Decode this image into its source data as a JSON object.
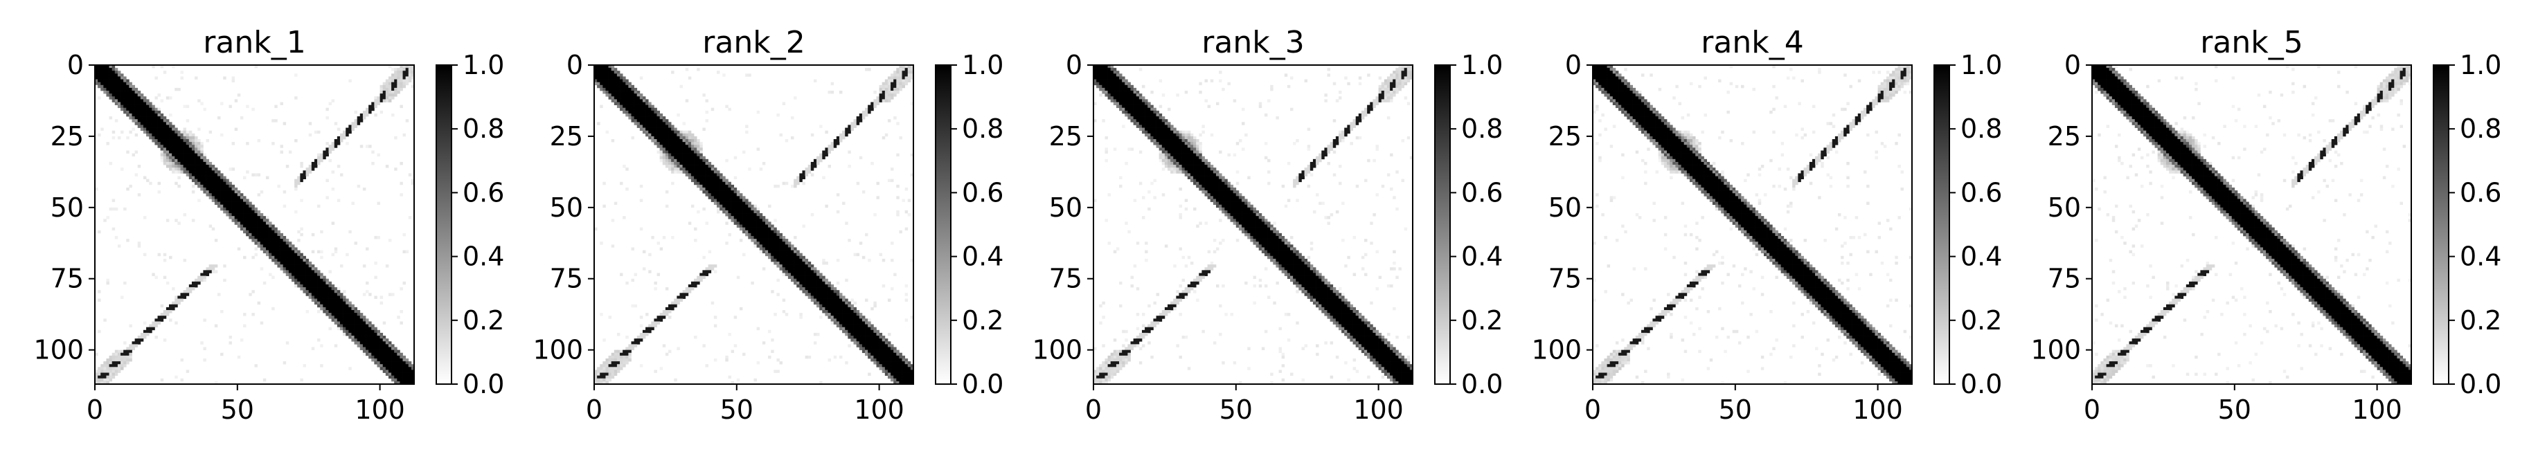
{
  "chart_data": [
    {
      "type": "heatmap",
      "title": "rank_1",
      "n": 112,
      "x_ticks": [
        0,
        50,
        100
      ],
      "y_ticks": [
        0,
        25,
        50,
        75,
        100
      ],
      "colorbar_ticks": [
        0.0,
        0.2,
        0.4,
        0.6,
        0.8,
        1.0
      ],
      "colormap": "Greys",
      "vmin": 0.0,
      "vmax": 1.0,
      "diagonal_width": 4,
      "anti_diagonal_start": 70,
      "variant": 0
    },
    {
      "type": "heatmap",
      "title": "rank_2",
      "n": 112,
      "x_ticks": [
        0,
        50,
        100
      ],
      "y_ticks": [
        0,
        25,
        50,
        75,
        100
      ],
      "colorbar_ticks": [
        0.0,
        0.2,
        0.4,
        0.6,
        0.8,
        1.0
      ],
      "colormap": "Greys",
      "vmin": 0.0,
      "vmax": 1.0,
      "diagonal_width": 4,
      "anti_diagonal_start": 70,
      "variant": 1
    },
    {
      "type": "heatmap",
      "title": "rank_3",
      "n": 112,
      "x_ticks": [
        0,
        50,
        100
      ],
      "y_ticks": [
        0,
        25,
        50,
        75,
        100
      ],
      "colorbar_ticks": [
        0.0,
        0.2,
        0.4,
        0.6,
        0.8,
        1.0
      ],
      "colormap": "Greys",
      "vmin": 0.0,
      "vmax": 1.0,
      "diagonal_width": 4,
      "anti_diagonal_start": 70,
      "variant": 2
    },
    {
      "type": "heatmap",
      "title": "rank_4",
      "n": 112,
      "x_ticks": [
        0,
        50,
        100
      ],
      "y_ticks": [
        0,
        25,
        50,
        75,
        100
      ],
      "colorbar_ticks": [
        0.0,
        0.2,
        0.4,
        0.6,
        0.8,
        1.0
      ],
      "colormap": "Greys",
      "vmin": 0.0,
      "vmax": 1.0,
      "diagonal_width": 4,
      "anti_diagonal_start": 70,
      "variant": 3
    },
    {
      "type": "heatmap",
      "title": "rank_5",
      "n": 112,
      "x_ticks": [
        0,
        50,
        100
      ],
      "y_ticks": [
        0,
        25,
        50,
        75,
        100
      ],
      "colorbar_ticks": [
        0.0,
        0.2,
        0.4,
        0.6,
        0.8,
        1.0
      ],
      "colormap": "Greys",
      "vmin": 0.0,
      "vmax": 1.0,
      "diagonal_width": 4,
      "anti_diagonal_start": 70,
      "variant": 4
    }
  ]
}
